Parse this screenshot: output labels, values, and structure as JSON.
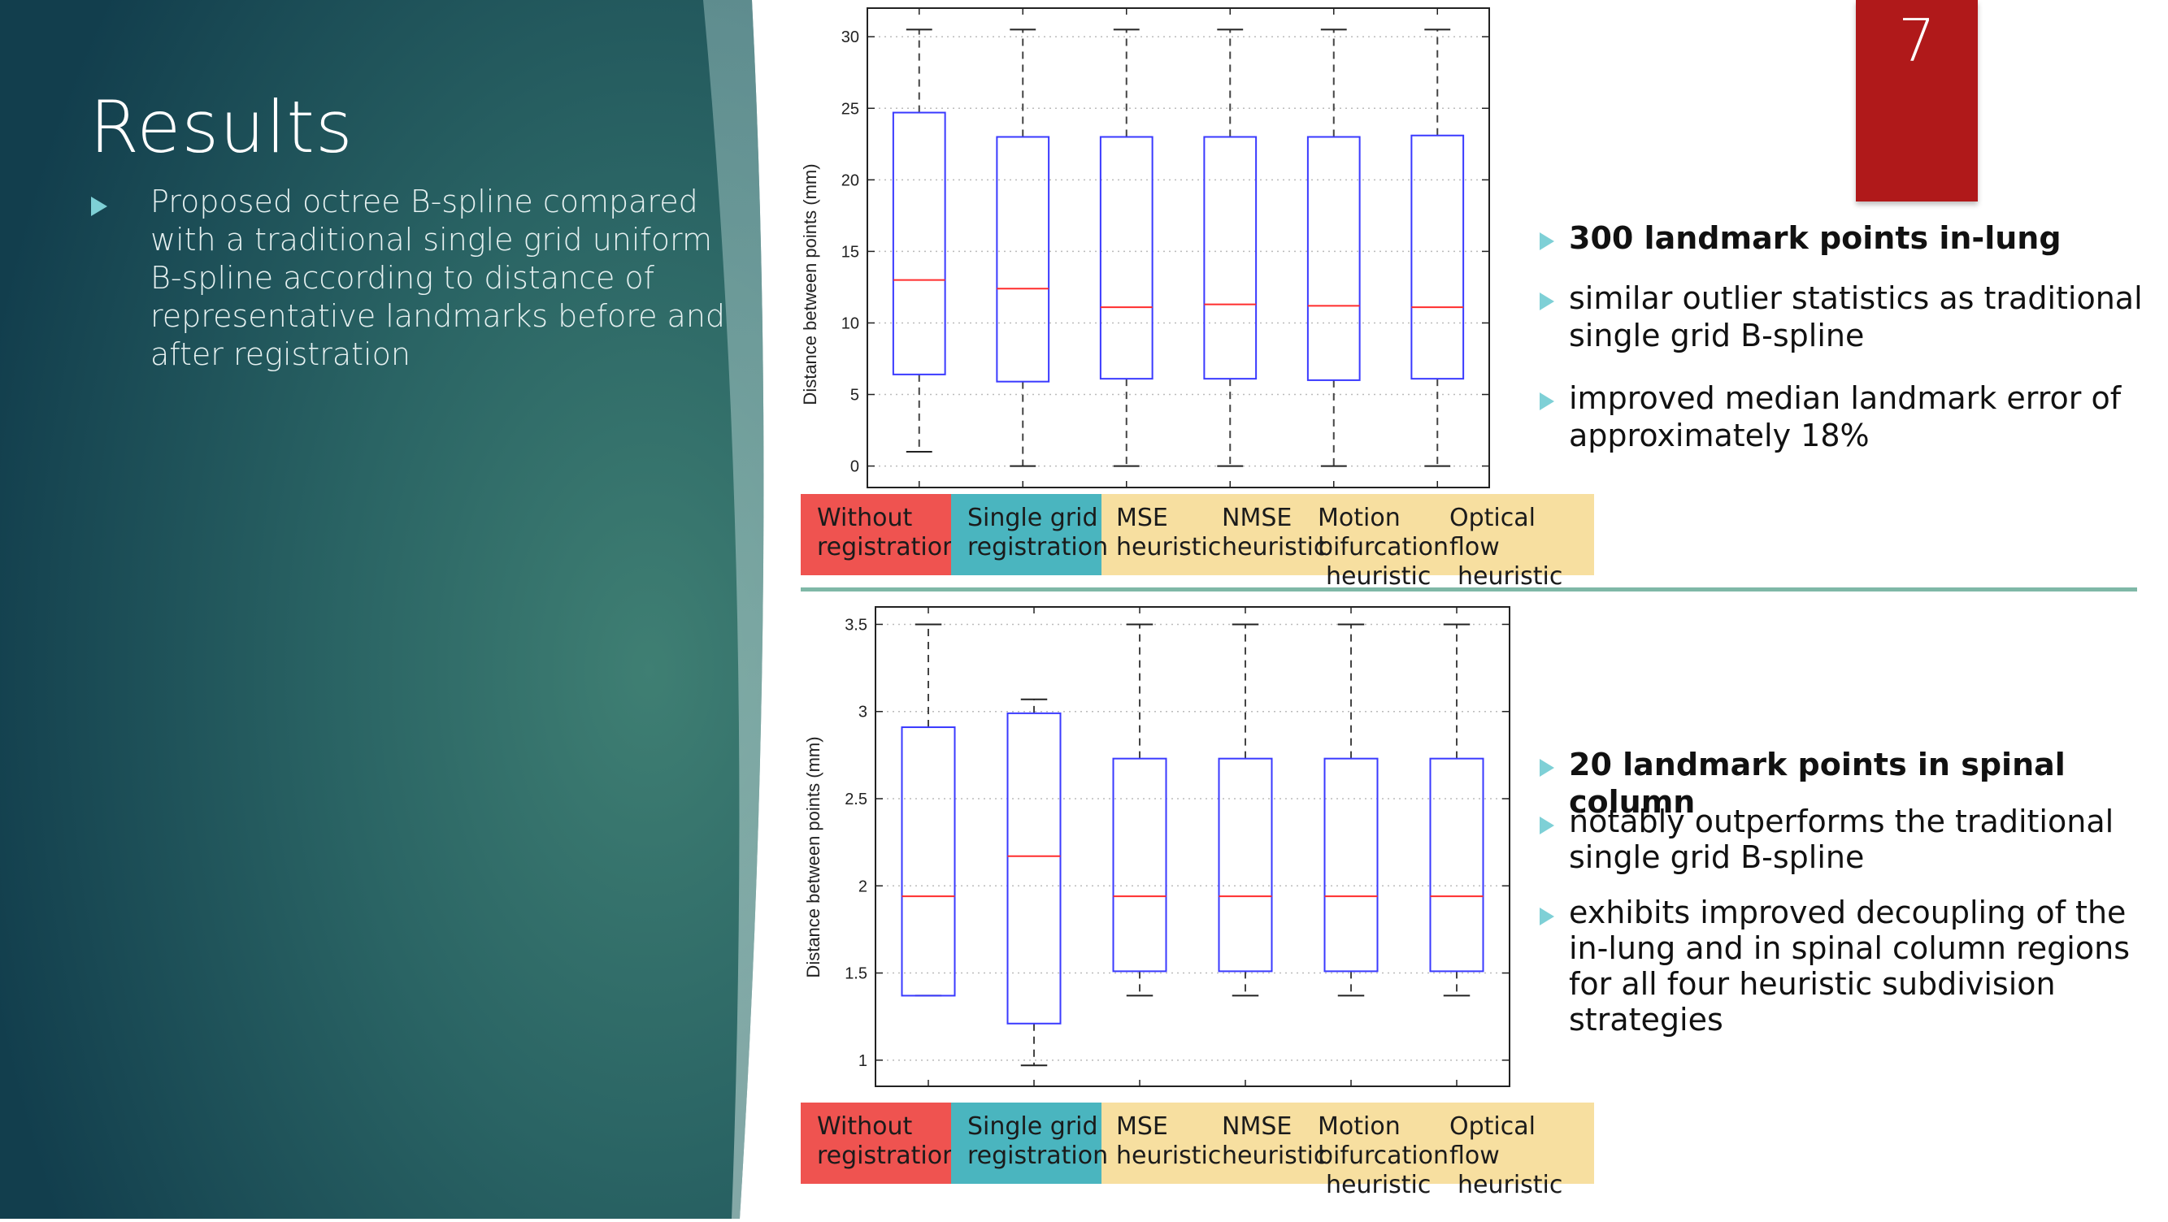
{
  "slide": {
    "title": "Results",
    "page_number": "7",
    "left_bullet": "Proposed octree B-spline compared with a traditional single grid uniform B-spline according to distance of representative landmarks before and after registration"
  },
  "category_labels": [
    {
      "line1": "Without",
      "line2": "registration",
      "line3": "",
      "color": "#ef5350"
    },
    {
      "line1": "Single grid",
      "line2": "registration",
      "line3": "",
      "color": "#4ab5bf"
    },
    {
      "line1": "MSE",
      "line2": "heuristic",
      "line3": "",
      "color": "#f7dfa0"
    },
    {
      "line1": "NMSE",
      "line2": "heuristic",
      "line3": "",
      "color": "#f7dfa0"
    },
    {
      "line1": "Motion",
      "line2": "bifurcation",
      "line3": "heuristic",
      "color": "#f7dfa0"
    },
    {
      "line1": "Optical",
      "line2": "flow",
      "line3": "heuristic",
      "color": "#f7dfa0"
    }
  ],
  "bullets_top": [
    {
      "text": "300 landmark points in-lung",
      "bold": true
    },
    {
      "text": "similar outlier statistics as traditional single grid B-spline",
      "bold": false
    },
    {
      "text": "improved median landmark error of approximately 18%",
      "bold": false
    }
  ],
  "bullets_bottom": [
    {
      "text": "20 landmark points in spinal column",
      "bold": true
    },
    {
      "text": "notably outperforms the traditional single grid B-spline",
      "bold": false
    },
    {
      "text": "exhibits improved decoupling of the in-lung and in spinal column regions for all four heuristic subdivision strategies",
      "bold": false
    }
  ],
  "colors": {
    "box": "#3a3aff",
    "median": "#ff2d2d",
    "whisker": "#444444",
    "grid": "#bbbbbb"
  },
  "chart_data": [
    {
      "type": "box",
      "ylabel": "Distance between points (mm)",
      "ylim": [
        -1.5,
        32
      ],
      "yticks": [
        0,
        5,
        10,
        15,
        20,
        25,
        30
      ],
      "grid": true,
      "boxes": [
        {
          "whislo": 1.0,
          "q1": 6.4,
          "median": 13.0,
          "q3": 24.7,
          "whishi": 30.5
        },
        {
          "whislo": 0.0,
          "q1": 5.9,
          "median": 12.4,
          "q3": 23.0,
          "whishi": 30.5
        },
        {
          "whislo": 0.0,
          "q1": 6.1,
          "median": 11.1,
          "q3": 23.0,
          "whishi": 30.5
        },
        {
          "whislo": 0.0,
          "q1": 6.1,
          "median": 11.3,
          "q3": 23.0,
          "whishi": 30.5
        },
        {
          "whislo": 0.0,
          "q1": 6.0,
          "median": 11.2,
          "q3": 23.0,
          "whishi": 30.5
        },
        {
          "whislo": 0.0,
          "q1": 6.1,
          "median": 11.1,
          "q3": 23.1,
          "whishi": 30.5
        }
      ]
    },
    {
      "type": "box",
      "ylabel": "Distance between points (mm)",
      "ylim": [
        0.85,
        3.6
      ],
      "yticks": [
        1,
        1.5,
        2,
        2.5,
        3,
        3.5
      ],
      "grid": true,
      "boxes": [
        {
          "whislo": 1.37,
          "q1": 1.37,
          "median": 1.94,
          "q3": 2.91,
          "whishi": 3.5
        },
        {
          "whislo": 0.97,
          "q1": 1.21,
          "median": 2.17,
          "q3": 2.99,
          "whishi": 3.07
        },
        {
          "whislo": 1.37,
          "q1": 1.51,
          "median": 1.94,
          "q3": 2.73,
          "whishi": 3.5
        },
        {
          "whislo": 1.37,
          "q1": 1.51,
          "median": 1.94,
          "q3": 2.73,
          "whishi": 3.5
        },
        {
          "whislo": 1.37,
          "q1": 1.51,
          "median": 1.94,
          "q3": 2.73,
          "whishi": 3.5
        },
        {
          "whislo": 1.37,
          "q1": 1.51,
          "median": 1.94,
          "q3": 2.73,
          "whishi": 3.5
        }
      ]
    }
  ]
}
